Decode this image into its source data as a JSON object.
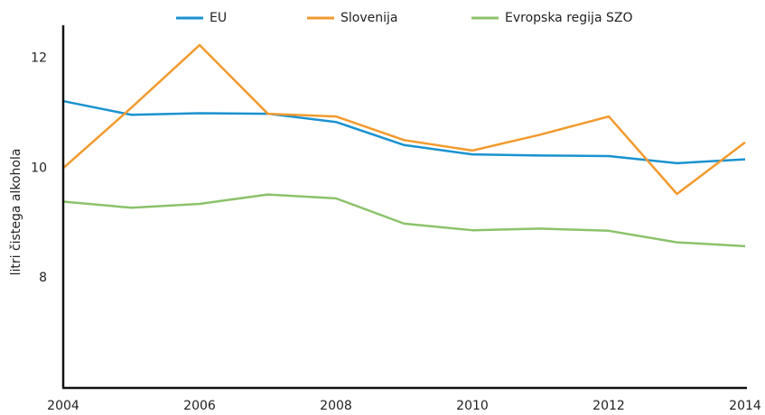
{
  "chart_data": {
    "type": "line",
    "y_label": "litri čistega alkohola",
    "x": [
      2004,
      2005,
      2006,
      2007,
      2008,
      2009,
      2010,
      2011,
      2012,
      2013,
      2014
    ],
    "series": [
      {
        "name": "EU",
        "color": "#1a92d0",
        "values": [
          11.22,
          10.97,
          11.0,
          10.99,
          10.84,
          10.42,
          10.25,
          10.23,
          10.22,
          10.09,
          10.16
        ]
      },
      {
        "name": "Slovenija",
        "color": "#f29a2e",
        "values": [
          10.0,
          11.1,
          12.24,
          10.99,
          10.94,
          10.51,
          10.32,
          10.61,
          10.94,
          9.53,
          10.47
        ]
      },
      {
        "name": "Evropska regija SZO",
        "color": "#8bc26a",
        "values": [
          9.39,
          9.28,
          9.35,
          9.52,
          9.45,
          8.99,
          8.87,
          8.9,
          8.86,
          8.65,
          8.58
        ]
      }
    ],
    "xlim": [
      2004,
      2014
    ],
    "xticks": [
      2004,
      2006,
      2008,
      2010,
      2012,
      2014
    ],
    "ylim": [
      6,
      12.6
    ],
    "yticks": [
      8,
      10,
      12
    ],
    "grid": false,
    "legend": "top"
  }
}
